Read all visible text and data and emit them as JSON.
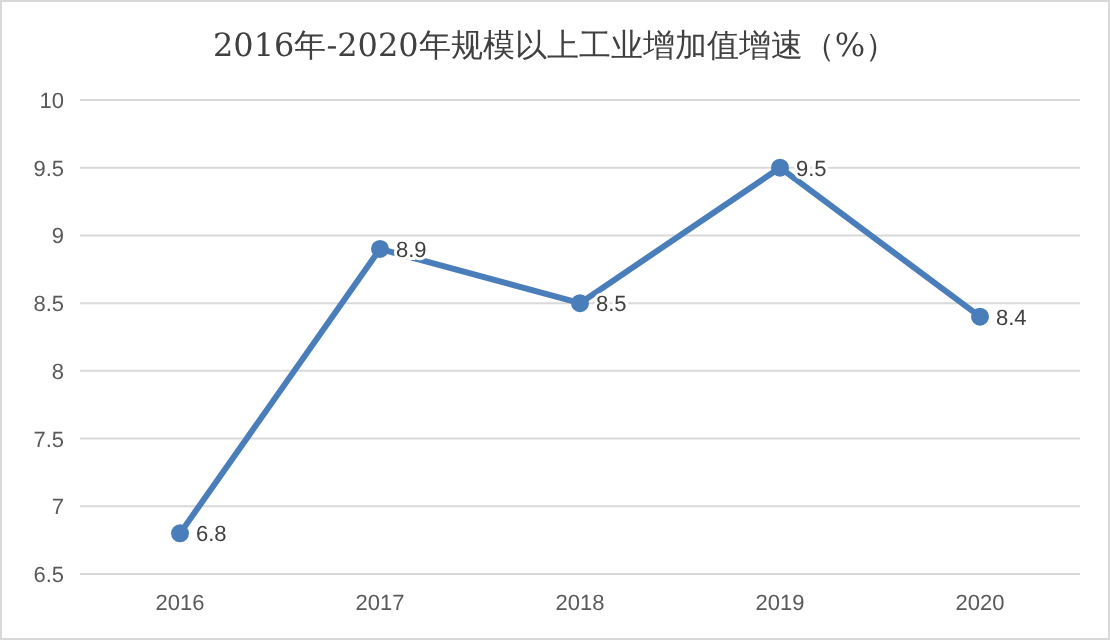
{
  "chart_data": {
    "type": "line",
    "title": "2016年-2020年规模以上工业增加值增速（%）",
    "categories": [
      "2016",
      "2017",
      "2018",
      "2019",
      "2020"
    ],
    "series": [
      {
        "color": "#4a7ebb",
        "values": [
          6.8,
          8.9,
          8.5,
          9.5,
          8.4
        ]
      }
    ],
    "ylim": [
      6.5,
      10
    ],
    "yticks": [
      6.5,
      7,
      7.5,
      8,
      8.5,
      9,
      9.5,
      10
    ],
    "grid": "y",
    "marker": "circle",
    "data_labels": true
  }
}
